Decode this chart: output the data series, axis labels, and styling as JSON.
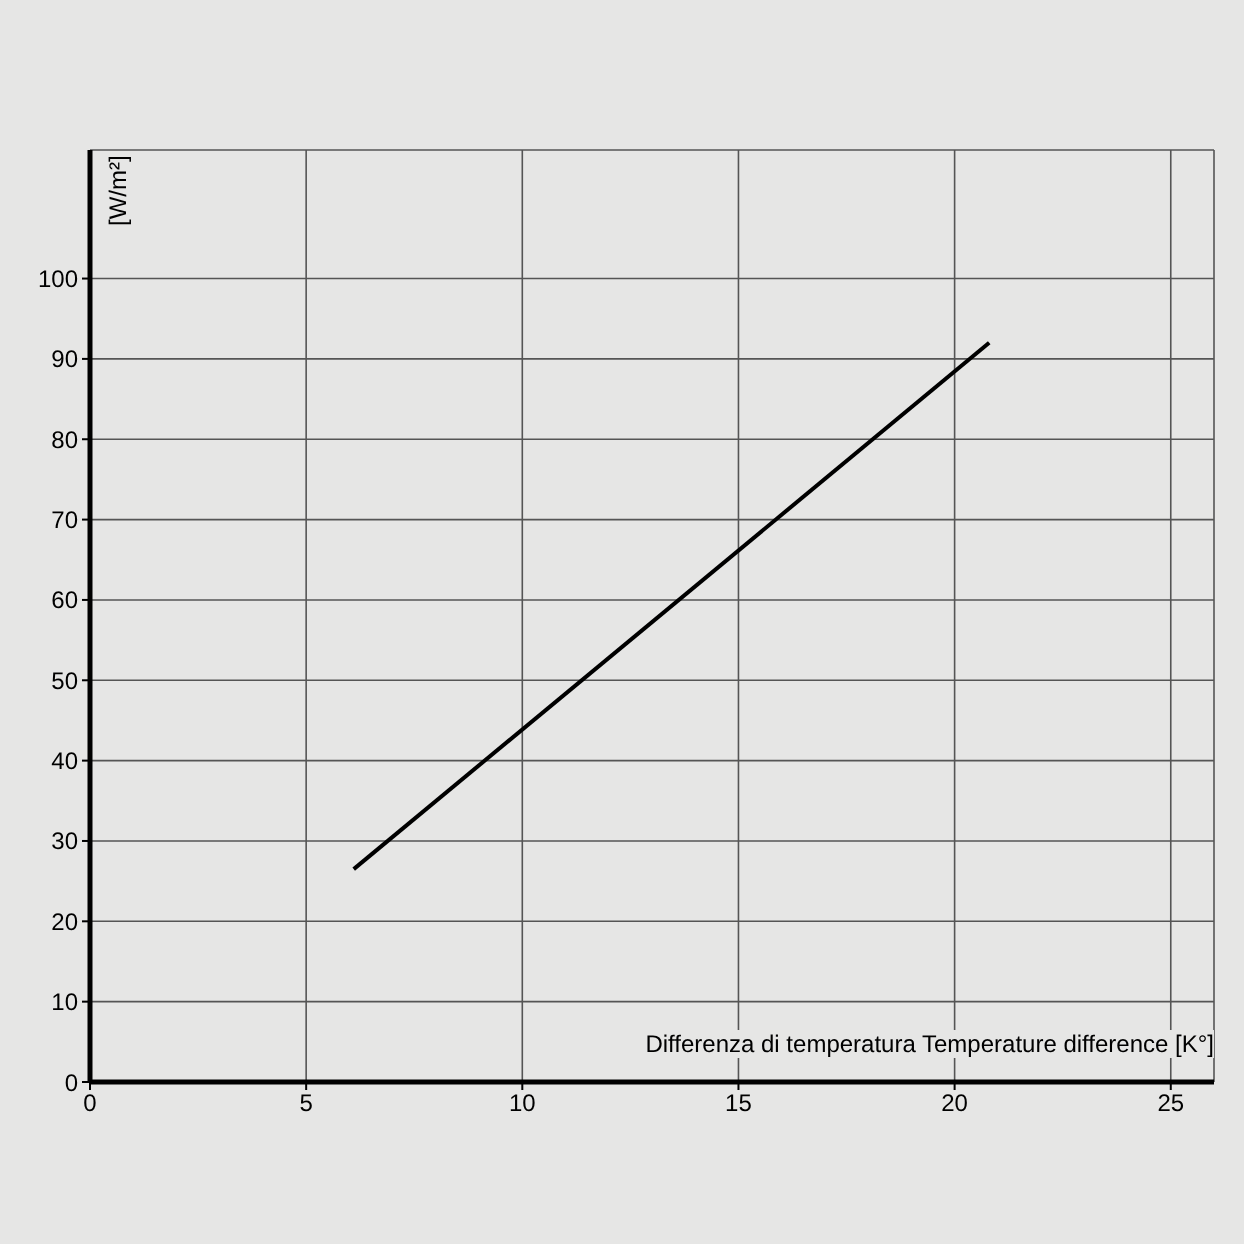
{
  "chart_data": {
    "type": "line",
    "xlabel": "Differenza di temperatura Temperature difference [K°]",
    "ylabel": "[W/m²]",
    "x": [
      6.1,
      20.8
    ],
    "series": [
      {
        "color": "#000000",
        "values": [
          26.5,
          92
        ]
      }
    ],
    "xlim": [
      0,
      26
    ],
    "xticks": [
      0,
      5,
      10,
      15,
      20,
      25
    ],
    "ylim": [
      0,
      116
    ],
    "yticks": [
      0,
      10,
      20,
      30,
      40,
      50,
      60,
      70,
      80,
      90,
      100
    ],
    "grid": true
  }
}
